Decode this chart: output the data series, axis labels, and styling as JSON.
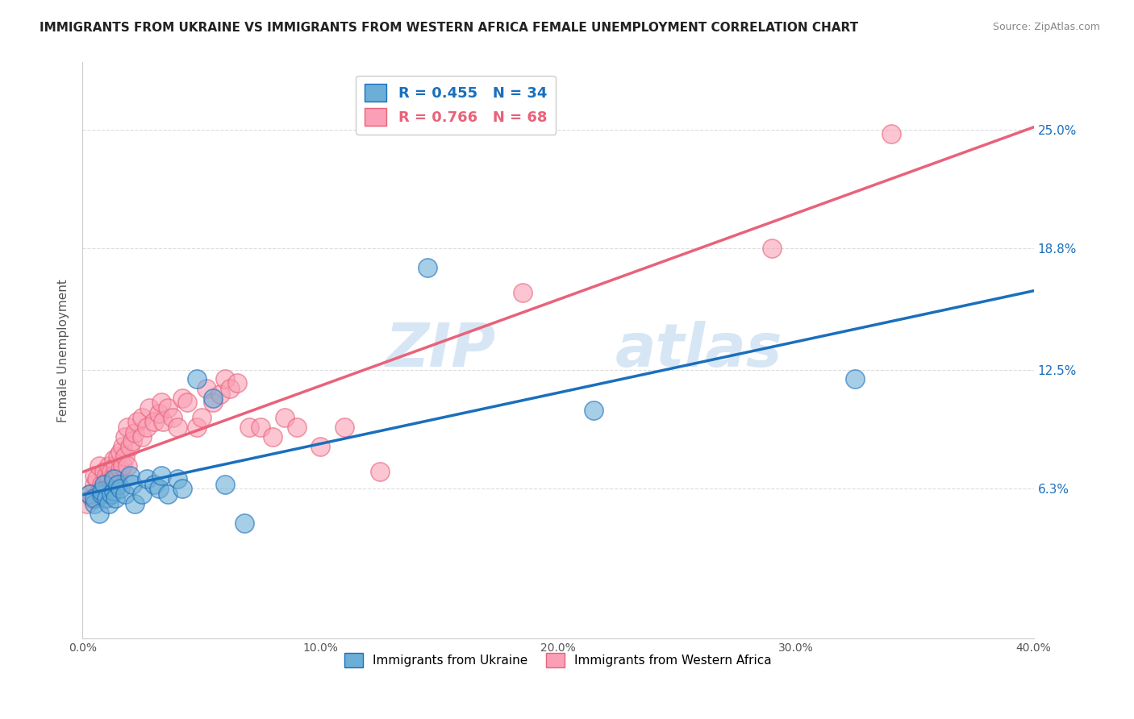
{
  "title": "IMMIGRANTS FROM UKRAINE VS IMMIGRANTS FROM WESTERN AFRICA FEMALE UNEMPLOYMENT CORRELATION CHART",
  "source": "Source: ZipAtlas.com",
  "ylabel": "Female Unemployment",
  "yticks": [
    "25.0%",
    "18.8%",
    "12.5%",
    "6.3%"
  ],
  "ytick_vals": [
    0.25,
    0.188,
    0.125,
    0.063
  ],
  "ukraine_color": "#6baed6",
  "ukraine_color_line": "#1a6fbd",
  "w_africa_color": "#fa9fb5",
  "w_africa_color_line": "#e8627a",
  "watermark_zip": "ZIP",
  "watermark_atlas": "atlas",
  "ukraine_scatter_x": [
    0.003,
    0.005,
    0.005,
    0.007,
    0.008,
    0.008,
    0.009,
    0.01,
    0.011,
    0.012,
    0.013,
    0.013,
    0.014,
    0.015,
    0.016,
    0.018,
    0.02,
    0.021,
    0.022,
    0.025,
    0.027,
    0.03,
    0.032,
    0.033,
    0.036,
    0.04,
    0.042,
    0.048,
    0.055,
    0.06,
    0.068,
    0.145,
    0.215,
    0.325
  ],
  "ukraine_scatter_y": [
    0.06,
    0.055,
    0.058,
    0.05,
    0.06,
    0.062,
    0.065,
    0.058,
    0.055,
    0.06,
    0.062,
    0.068,
    0.058,
    0.065,
    0.063,
    0.06,
    0.07,
    0.065,
    0.055,
    0.06,
    0.068,
    0.065,
    0.063,
    0.07,
    0.06,
    0.068,
    0.063,
    0.12,
    0.11,
    0.065,
    0.045,
    0.178,
    0.104,
    0.12
  ],
  "w_africa_scatter_x": [
    0.002,
    0.003,
    0.004,
    0.005,
    0.005,
    0.006,
    0.007,
    0.007,
    0.008,
    0.008,
    0.009,
    0.009,
    0.01,
    0.01,
    0.011,
    0.011,
    0.012,
    0.012,
    0.013,
    0.013,
    0.014,
    0.014,
    0.015,
    0.015,
    0.016,
    0.016,
    0.017,
    0.017,
    0.018,
    0.018,
    0.019,
    0.019,
    0.02,
    0.021,
    0.022,
    0.023,
    0.025,
    0.025,
    0.027,
    0.028,
    0.03,
    0.032,
    0.033,
    0.034,
    0.036,
    0.038,
    0.04,
    0.042,
    0.044,
    0.048,
    0.05,
    0.052,
    0.055,
    0.058,
    0.06,
    0.062,
    0.065,
    0.07,
    0.075,
    0.08,
    0.085,
    0.09,
    0.1,
    0.11,
    0.125,
    0.34,
    0.29,
    0.185
  ],
  "w_africa_scatter_y": [
    0.055,
    0.06,
    0.058,
    0.065,
    0.07,
    0.068,
    0.062,
    0.075,
    0.06,
    0.065,
    0.072,
    0.058,
    0.063,
    0.07,
    0.068,
    0.075,
    0.065,
    0.072,
    0.07,
    0.078,
    0.068,
    0.075,
    0.07,
    0.08,
    0.073,
    0.082,
    0.075,
    0.085,
    0.08,
    0.09,
    0.075,
    0.095,
    0.085,
    0.088,
    0.092,
    0.098,
    0.09,
    0.1,
    0.095,
    0.105,
    0.098,
    0.102,
    0.108,
    0.098,
    0.105,
    0.1,
    0.095,
    0.11,
    0.108,
    0.095,
    0.1,
    0.115,
    0.108,
    0.112,
    0.12,
    0.115,
    0.118,
    0.095,
    0.095,
    0.09,
    0.1,
    0.095,
    0.085,
    0.095,
    0.072,
    0.248,
    0.188,
    0.165
  ],
  "xlim": [
    0.0,
    0.4
  ],
  "ylim": [
    -0.015,
    0.285
  ],
  "background_color": "#ffffff",
  "grid_color": "#d9d9d9"
}
